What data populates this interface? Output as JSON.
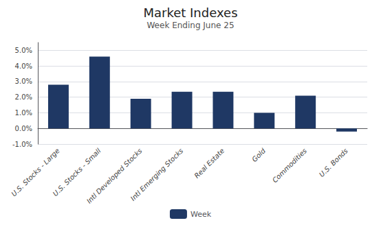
{
  "chart_data": {
    "type": "bar",
    "title": "Market Indexes",
    "subtitle": "Week Ending June 25",
    "categories": [
      "U.S. Stocks - Large",
      "U.S. Stocks - Small",
      "Intl Developed Stocks",
      "Intl Emerging Stocks",
      "Real Estate",
      "Gold",
      "Commodities",
      "U.S. Bonds"
    ],
    "series": [
      {
        "name": "Week",
        "color": "#1F3864",
        "values": [
          0.028,
          0.046,
          0.019,
          0.0235,
          0.0235,
          0.01,
          0.021,
          -0.002
        ]
      }
    ],
    "ylim": [
      -0.01,
      0.055
    ],
    "yticks": [
      {
        "value": -0.01,
        "label": "-1.0%"
      },
      {
        "value": 0.0,
        "label": "0.0%"
      },
      {
        "value": 0.01,
        "label": "1.0%"
      },
      {
        "value": 0.02,
        "label": "2.0%"
      },
      {
        "value": 0.03,
        "label": "3.0%"
      },
      {
        "value": 0.04,
        "label": "4.0%"
      },
      {
        "value": 0.05,
        "label": "5.0%"
      }
    ],
    "grid": true,
    "legend": "bottom"
  }
}
